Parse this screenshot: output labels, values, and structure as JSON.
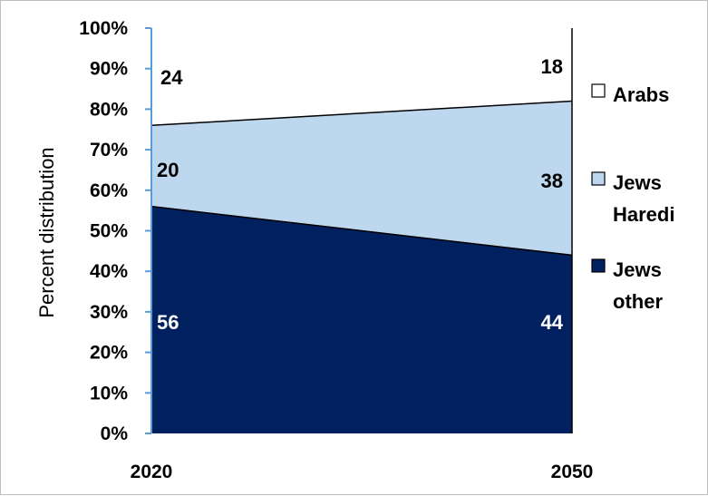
{
  "chart_data": {
    "type": "area",
    "stacked": true,
    "x": [
      "2020",
      "2050"
    ],
    "series": [
      {
        "name": "Jews other",
        "values": [
          56,
          44
        ],
        "color": "#002060"
      },
      {
        "name": "Jews Haredi",
        "values": [
          20,
          38
        ],
        "color": "#bdd7ee"
      },
      {
        "name": "Arabs",
        "values": [
          24,
          18
        ],
        "color": "#ffffff"
      }
    ],
    "ylabel": "Percent distribution",
    "ylim": [
      0,
      100
    ],
    "y_ticks": [
      "0%",
      "10%",
      "20%",
      "30%",
      "40%",
      "50%",
      "60%",
      "70%",
      "80%",
      "90%",
      "100%"
    ],
    "data_labels": {
      "Jews other": [
        "56",
        "44"
      ],
      "Jews Haredi": [
        "20",
        "38"
      ],
      "Arabs": [
        "24",
        "18"
      ]
    },
    "legend": {
      "placement": "right",
      "entries": [
        {
          "series": "Arabs",
          "lines": [
            "Arabs"
          ]
        },
        {
          "series": "Jews Haredi",
          "lines": [
            "Jews",
            "Haredi"
          ]
        },
        {
          "series": "Jews other",
          "lines": [
            "Jews",
            "other"
          ]
        }
      ]
    },
    "axis_color": "#5b9bd5",
    "grid": false
  }
}
